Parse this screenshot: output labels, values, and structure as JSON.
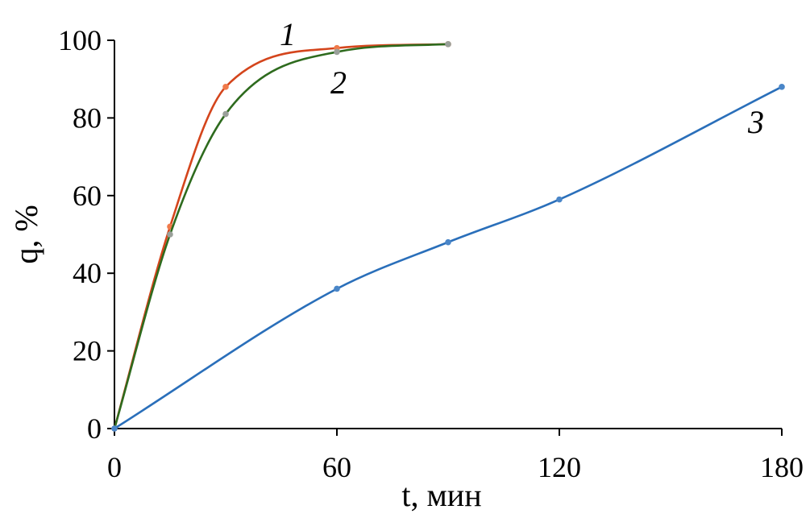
{
  "chart_data": {
    "type": "line",
    "title": "",
    "xlabel": "t, мин",
    "ylabel": "q, %",
    "xlim": [
      0,
      180
    ],
    "ylim": [
      0,
      100
    ],
    "xticks": [
      0,
      60,
      120,
      180
    ],
    "yticks": [
      0,
      20,
      40,
      60,
      80,
      100
    ],
    "grid": false,
    "legend": "none",
    "series": [
      {
        "label": "1",
        "color": "#d4451c",
        "marker_color": "#f07a4a",
        "x": [
          0,
          15,
          30,
          60,
          90
        ],
        "y": [
          0,
          52,
          88,
          98,
          99
        ]
      },
      {
        "label": "2",
        "color": "#2e6b1e",
        "marker_color": "#9aa09a",
        "x": [
          0,
          15,
          30,
          60,
          90
        ],
        "y": [
          0,
          50,
          81,
          97,
          99
        ]
      },
      {
        "label": "3",
        "color": "#2a6fba",
        "marker_color": "#4a86c8",
        "x": [
          0,
          60,
          90,
          120,
          180
        ],
        "y": [
          0,
          36,
          48,
          59,
          88
        ]
      }
    ]
  }
}
